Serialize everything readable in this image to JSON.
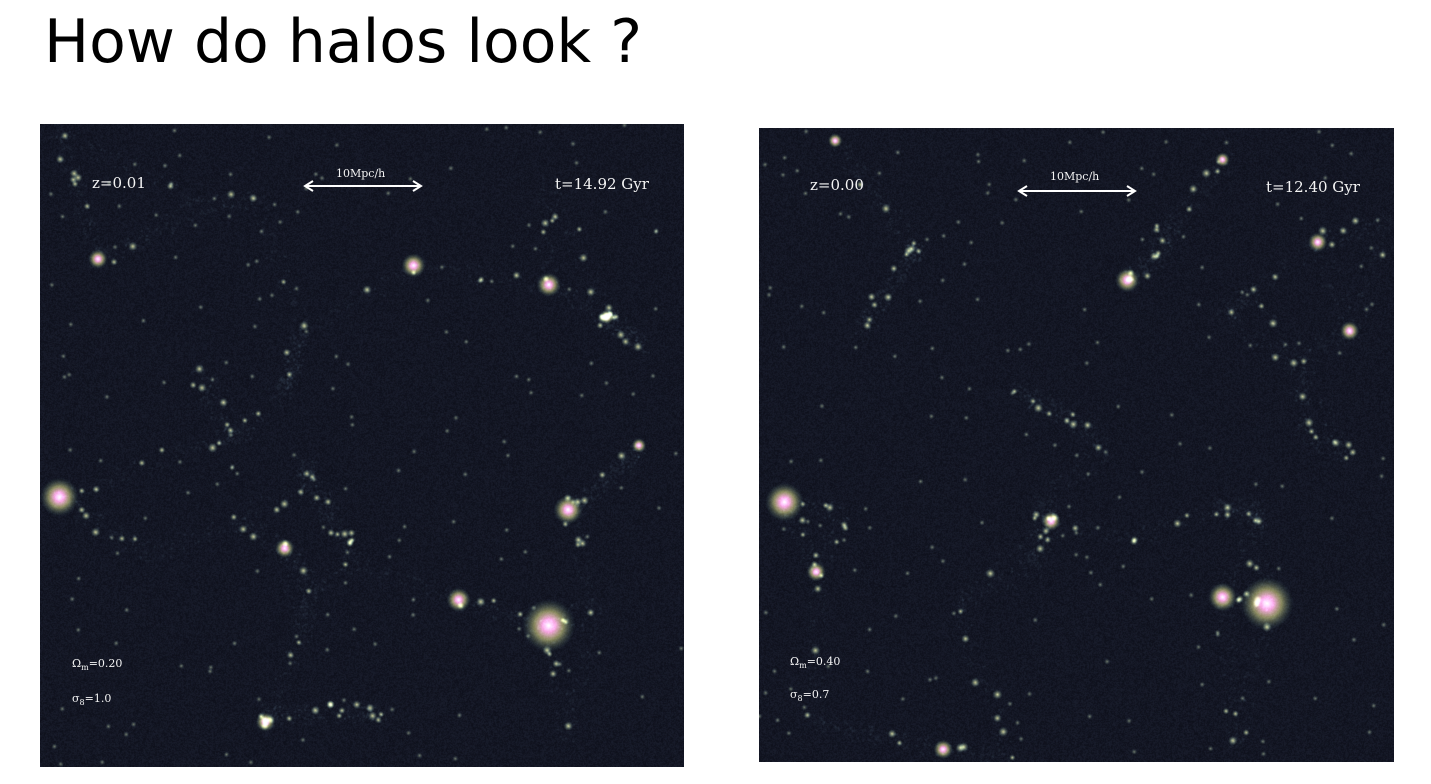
{
  "slide": {
    "title": "How do halos look ?"
  },
  "panels": [
    {
      "id": "left",
      "redshift": "z=0.01",
      "scale_bar": "10Mpc/h",
      "time": "t=14.92 Gyr",
      "omega_m": "Ω_m=0.20",
      "sigma_8": "σ_8=1.0",
      "colors": {
        "background": "#0d0f1a",
        "filament": "#4f6f7a",
        "halo_core": "#ffb0d8",
        "halo_mid": "#d8d37a"
      }
    },
    {
      "id": "right",
      "redshift": "z=0.00",
      "scale_bar": "10Mpc/h",
      "time": "t=12.40 Gyr",
      "omega_m": "Ω_m=0.40",
      "sigma_8": "σ_8=0.7",
      "colors": {
        "background": "#0d0f1a",
        "filament": "#4f6f7a",
        "halo_core": "#ffb0d8",
        "halo_mid": "#d8d37a"
      }
    }
  ]
}
